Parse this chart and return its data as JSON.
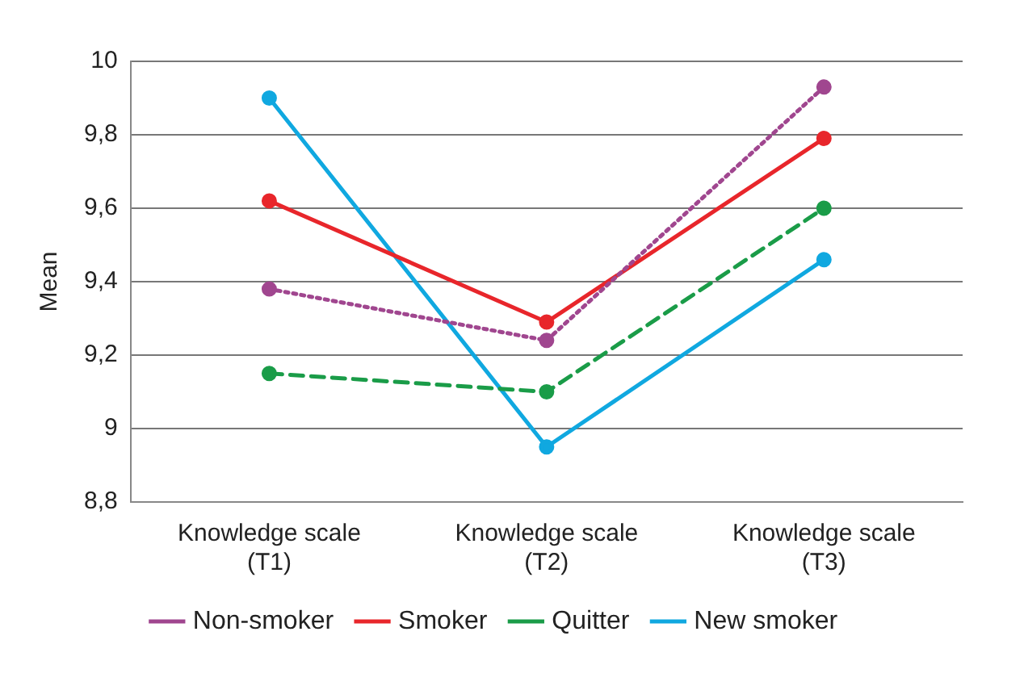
{
  "chart_data": {
    "type": "line",
    "ylabel": "Mean",
    "categories": [
      "Knowledge scale (T1)",
      "Knowledge scale (T2)",
      "Knowledge scale (T3)"
    ],
    "series": [
      {
        "name": "Non-smoker",
        "color": "#a0468f",
        "line_style": "dotted",
        "values": [
          9.38,
          9.24,
          9.93
        ]
      },
      {
        "name": "Smoker",
        "color": "#e8262b",
        "line_style": "solid",
        "values": [
          9.62,
          9.29,
          9.79
        ]
      },
      {
        "name": "Quitter",
        "color": "#1a9c48",
        "line_style": "dashed",
        "values": [
          9.15,
          9.1,
          9.6
        ]
      },
      {
        "name": "New smoker",
        "color": "#10a8e0",
        "line_style": "solid",
        "values": [
          9.9,
          8.95,
          9.46
        ]
      }
    ],
    "ylim": [
      8.8,
      10
    ],
    "yticks": [
      {
        "value": 8.8,
        "label": "8,8"
      },
      9,
      {
        "value": 9.2,
        "label": "9,2"
      },
      {
        "value": 9.4,
        "label": "9,4"
      },
      {
        "value": 9.6,
        "label": "9,6"
      },
      {
        "value": 9.8,
        "label": "9,8"
      },
      10
    ],
    "grid": "y",
    "legend": "bottom",
    "marker": "circle"
  }
}
